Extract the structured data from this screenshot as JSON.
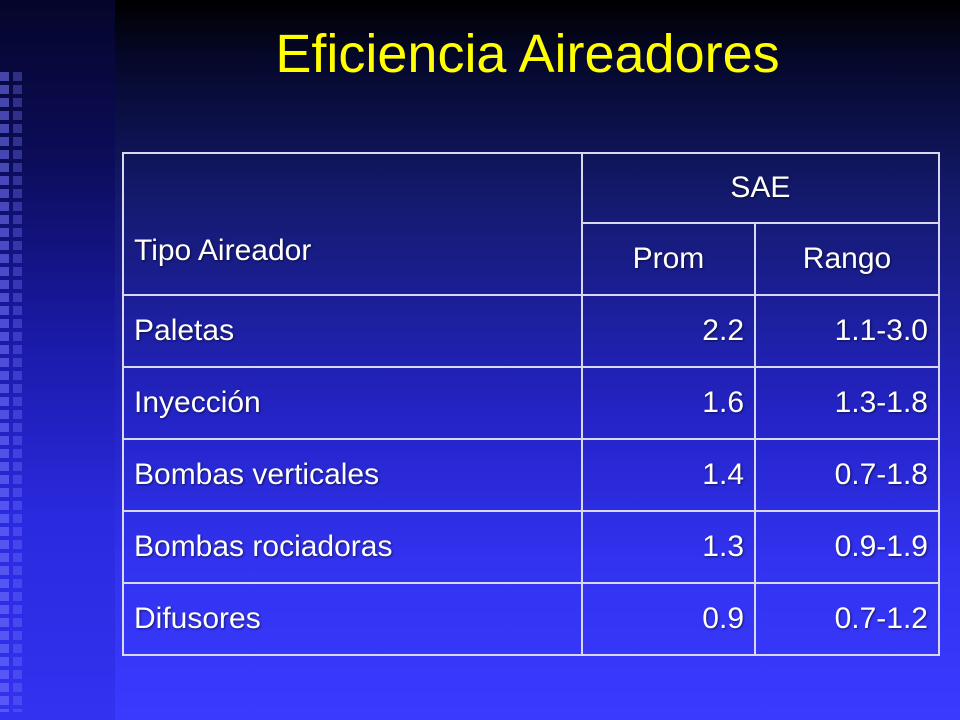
{
  "slide": {
    "title": "Eficiencia Aireadores"
  },
  "table": {
    "header": {
      "first_col": "Tipo Aireador",
      "group": "SAE",
      "sub": [
        "Prom",
        "Rango"
      ]
    },
    "rows": [
      {
        "tipo": "Paletas",
        "prom": "2.2",
        "rango": "1.1-3.0"
      },
      {
        "tipo": "Inyección",
        "prom": "1.6",
        "rango": "1.3-1.8"
      },
      {
        "tipo": "Bombas verticales",
        "prom": "1.4",
        "rango": "0.7-1.8"
      },
      {
        "tipo": "Bombas rociadoras",
        "prom": "1.3",
        "rango": "0.9-1.9"
      },
      {
        "tipo": "Difusores",
        "prom": "0.9",
        "rango": "0.7-1.2"
      }
    ]
  },
  "colors": {
    "title": "#ffff00",
    "background": "#3232f0",
    "text": "#ffffff",
    "border": "#d8d8f0"
  }
}
